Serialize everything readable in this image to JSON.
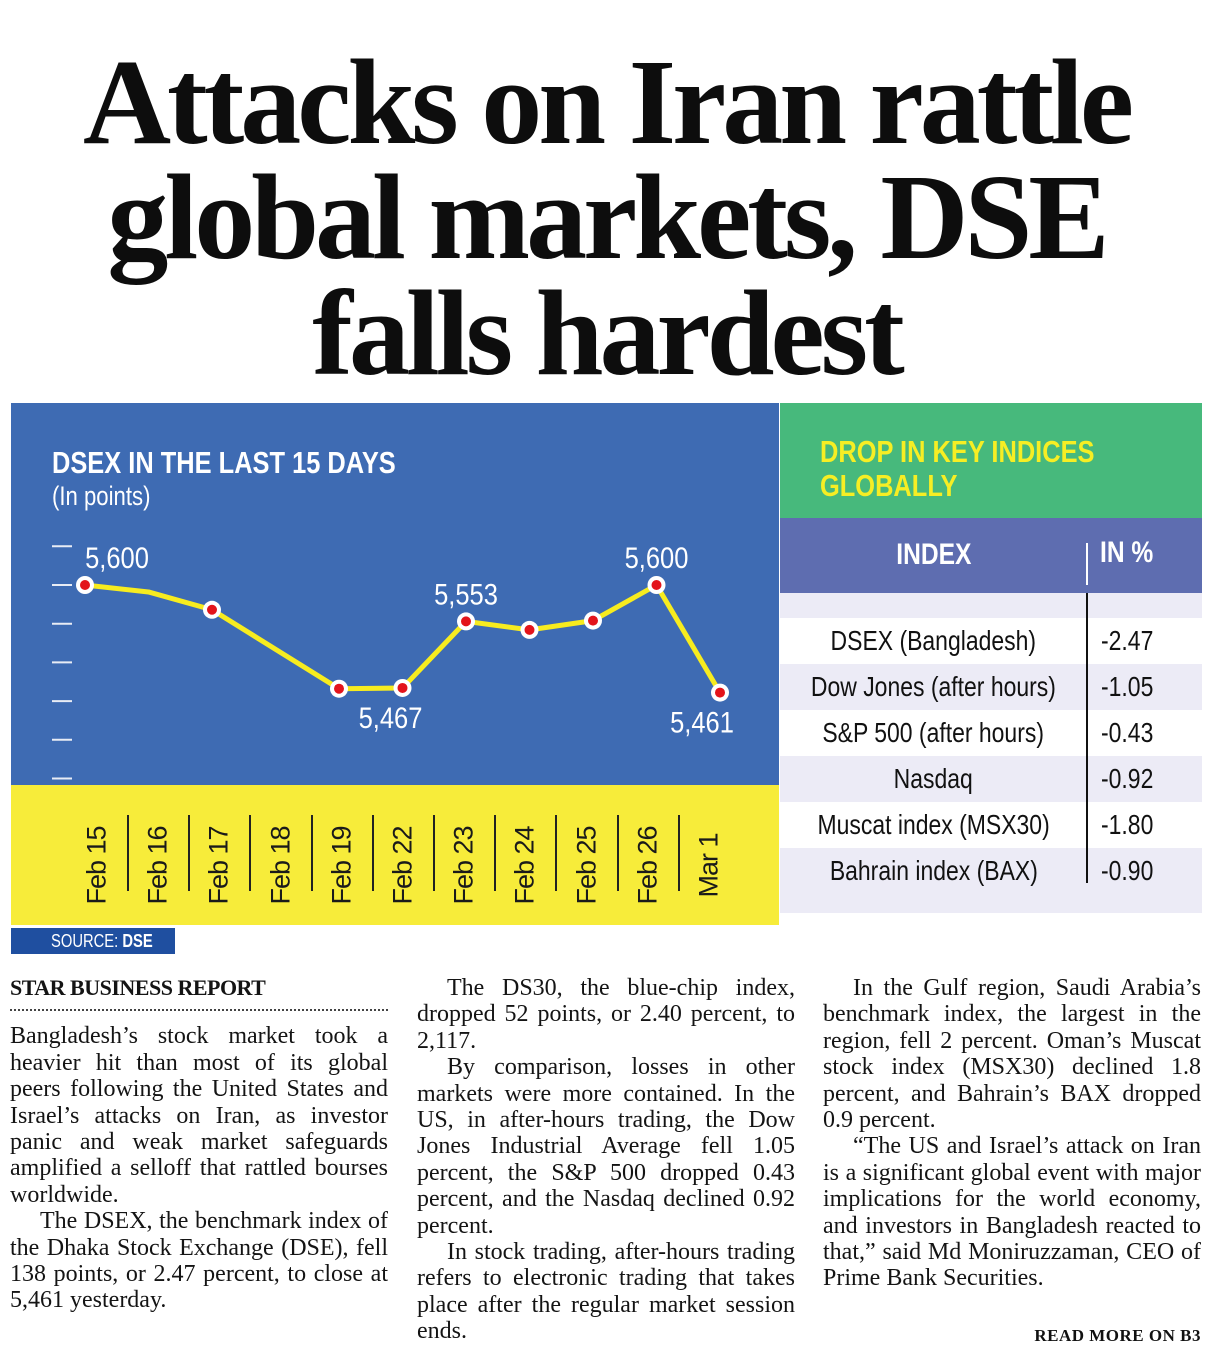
{
  "headline": {
    "line1": "Attacks on Iran rattle",
    "line2": "global markets, DSE",
    "line3": "falls hardest"
  },
  "chart_data": {
    "type": "line",
    "title": "DSEX IN THE LAST 15 DAYS",
    "subtitle": "(In points)",
    "xlabel": "",
    "ylabel": "",
    "categories": [
      "Feb 15",
      "Feb 16",
      "Feb 17",
      "Feb 18",
      "Feb 19",
      "Feb 22",
      "Feb 23",
      "Feb 24",
      "Feb 25",
      "Feb 26",
      "Mar 1"
    ],
    "values": [
      5600,
      5591,
      5568,
      null,
      5466,
      5467,
      5553,
      5542,
      5554,
      5600,
      5461
    ],
    "markers": [
      true,
      false,
      true,
      false,
      true,
      true,
      true,
      true,
      true,
      true,
      true
    ],
    "data_labels": [
      {
        "index": 0,
        "text": "5,600",
        "position": "above"
      },
      {
        "index": 5,
        "text": "5,467",
        "position": "below"
      },
      {
        "index": 6,
        "text": "5,553",
        "position": "above"
      },
      {
        "index": 9,
        "text": "5,600",
        "position": "above"
      },
      {
        "index": 10,
        "text": "5,461",
        "position": "below"
      }
    ],
    "ylim": [
      5350,
      5650
    ],
    "ytick_step": 50,
    "grid": false,
    "colors": {
      "background": "#3e6bb3",
      "line": "#f7ec1f",
      "marker": "#e3141b",
      "marker_ring": "#ffffff",
      "axis_band": "#f7ec3a"
    }
  },
  "source": {
    "label": "SOURCE:",
    "value": "DSE"
  },
  "indices_table": {
    "title_line1": "DROP IN KEY INDICES",
    "title_line2": "GLOBALLY",
    "col_index": "INDEX",
    "col_pct": "IN %",
    "rows": [
      {
        "name": "DSEX (Bangladesh)",
        "pct": "-2.47"
      },
      {
        "name": "Dow Jones (after hours)",
        "pct": "-1.05"
      },
      {
        "name": "S&P 500 (after hours)",
        "pct": "-0.43"
      },
      {
        "name": "Nasdaq",
        "pct": "-0.92"
      },
      {
        "name": "Muscat index (MSX30)",
        "pct": "-1.80"
      },
      {
        "name": "Bahrain index (BAX)",
        "pct": "-0.90"
      }
    ]
  },
  "article": {
    "byline": "STAR BUSINESS REPORT",
    "paragraphs": [
      "Bangladesh’s stock market took a heavier hit than most of its global peers following the United States and Israel’s attacks on Iran, as investor panic and weak market safeguards amplified a selloff that rattled bourses worldwide.",
      "The DSEX, the benchmark index of the Dhaka Stock Exchange (DSE), fell 138 points, or 2.47 percent, to close at 5,461 yesterday.",
      "The DS30, the blue-chip index, dropped 52 points, or 2.40 percent, to 2,117.",
      "By comparison, losses in other markets were more contained. In the US, in after-hours trading, the Dow Jones Industrial Average fell 1.05 percent, the S&P 500 dropped 0.43 percent, and the Nasdaq declined 0.92 percent.",
      "In stock trading, after-hours trading refers to electronic trading that takes place after the regular market session ends.",
      "In the Gulf region, Saudi Arabia’s benchmark index, the largest in the region, fell 2 percent. Oman’s Muscat stock index (MSX30) declined 1.8 percent, and Bahrain’s BAX dropped 0.9 percent.",
      "“The US and Israel’s attack on Iran is a significant global event with major implications for the world economy, and investors in Bangladesh reacted to that,” said Md Moniruzzaman, CEO of Prime Bank Securities."
    ],
    "read_more": "READ MORE ON B3"
  }
}
